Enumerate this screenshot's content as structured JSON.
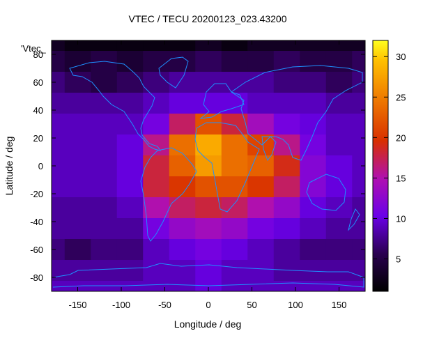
{
  "chart_data": {
    "type": "heatmap",
    "title": "VTEC / TECU 20200123_023.43200",
    "xlabel": "Longitude / deg",
    "ylabel": "Latitude / deg",
    "series_label": "'Vtec_",
    "xlim": [
      -180,
      180
    ],
    "ylim": [
      -90,
      90
    ],
    "xticks": [
      -150,
      -100,
      -50,
      0,
      50,
      100,
      150
    ],
    "yticks": [
      -80,
      -60,
      -40,
      -20,
      0,
      20,
      40,
      60,
      80
    ],
    "colorbar_ticks": [
      5,
      10,
      15,
      20,
      25,
      30
    ],
    "colorbar_range": [
      1,
      32
    ],
    "colormap": "black-purple-red-orange-yellow",
    "x": [
      -180,
      -150,
      -120,
      -90,
      -60,
      -30,
      0,
      30,
      60,
      90,
      120,
      150,
      180
    ],
    "y": [
      90,
      75,
      60,
      45,
      30,
      15,
      0,
      -15,
      -30,
      -45,
      -60,
      -75,
      -90
    ],
    "values": [
      [
        3,
        2,
        2,
        2,
        2,
        2,
        3,
        2,
        3,
        3,
        3,
        3,
        3
      ],
      [
        5,
        4,
        5,
        4,
        5,
        5,
        6,
        5,
        5,
        6,
        5,
        5,
        6
      ],
      [
        7,
        6,
        5,
        6,
        7,
        8,
        8,
        8,
        8,
        7,
        7,
        6,
        7
      ],
      [
        8,
        8,
        8,
        8,
        9,
        10,
        10,
        10,
        9,
        9,
        9,
        8,
        8
      ],
      [
        9,
        9,
        9,
        9,
        11,
        17,
        22,
        18,
        14,
        11,
        10,
        9,
        9
      ],
      [
        9,
        9,
        9,
        10,
        16,
        24,
        28,
        24,
        21,
        16,
        11,
        9,
        9
      ],
      [
        9,
        9,
        9,
        10,
        18,
        23,
        27,
        24,
        23,
        19,
        12,
        10,
        9
      ],
      [
        9,
        9,
        9,
        10,
        18,
        20,
        22,
        22,
        20,
        17,
        12,
        10,
        9
      ],
      [
        8,
        8,
        8,
        9,
        15,
        17,
        18,
        17,
        15,
        13,
        10,
        9,
        8
      ],
      [
        8,
        8,
        8,
        8,
        11,
        13,
        14,
        13,
        11,
        10,
        9,
        8,
        8
      ],
      [
        7,
        6,
        7,
        7,
        9,
        10,
        11,
        10,
        9,
        8,
        7,
        7,
        7
      ],
      [
        8,
        8,
        8,
        8,
        9,
        9,
        10,
        9,
        9,
        8,
        8,
        8,
        8
      ],
      [
        9,
        9,
        9,
        9,
        9,
        9,
        10,
        9,
        9,
        9,
        9,
        9,
        9
      ]
    ]
  },
  "colors": {
    "coastline": "#1e90ff",
    "axis": "#000000",
    "background": "#ffffff"
  }
}
